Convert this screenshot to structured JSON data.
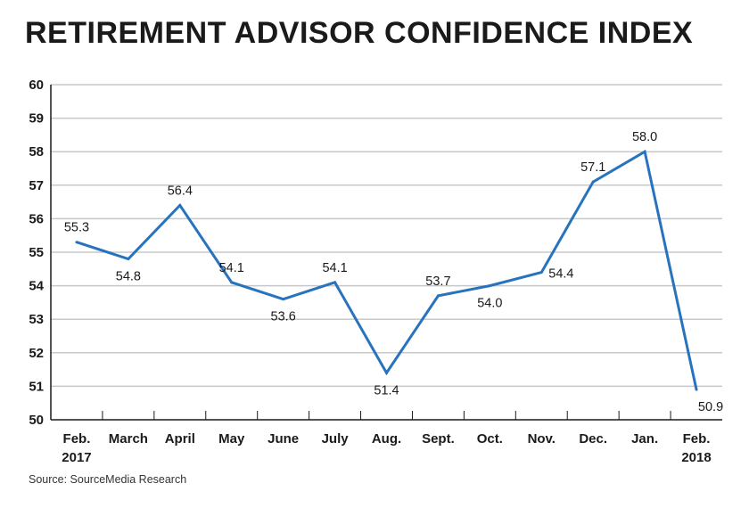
{
  "chart_data": {
    "type": "line",
    "title": "RETIREMENT ADVISOR CONFIDENCE INDEX",
    "categories": [
      {
        "line1": "Feb.",
        "line2": "2017"
      },
      {
        "line1": "March",
        "line2": ""
      },
      {
        "line1": "April",
        "line2": ""
      },
      {
        "line1": "May",
        "line2": ""
      },
      {
        "line1": "June",
        "line2": ""
      },
      {
        "line1": "July",
        "line2": ""
      },
      {
        "line1": "Aug.",
        "line2": ""
      },
      {
        "line1": "Sept.",
        "line2": ""
      },
      {
        "line1": "Oct.",
        "line2": ""
      },
      {
        "line1": "Nov.",
        "line2": ""
      },
      {
        "line1": "Dec.",
        "line2": ""
      },
      {
        "line1": "Jan.",
        "line2": ""
      },
      {
        "line1": "Feb.",
        "line2": "2018"
      }
    ],
    "series": [
      {
        "name": "Retirement Advisor Confidence Index",
        "values": [
          55.3,
          54.8,
          56.4,
          54.1,
          53.6,
          54.1,
          51.4,
          53.7,
          54.0,
          54.4,
          57.1,
          58.0,
          50.9
        ],
        "labels": [
          "55.3",
          "54.8",
          "56.4",
          "54.1",
          "53.6",
          "54.1",
          "51.4",
          "53.7",
          "54.0",
          "54.4",
          "57.1",
          "58.0",
          "50.9"
        ],
        "label_pos": [
          "above",
          "below",
          "above",
          "above",
          "below",
          "above",
          "below",
          "above",
          "below",
          "right",
          "above",
          "above",
          "below"
        ]
      }
    ],
    "ylim": [
      50,
      60
    ],
    "yticks": [
      50,
      51,
      52,
      53,
      54,
      55,
      56,
      57,
      58,
      59,
      60
    ],
    "xlabel": "",
    "ylabel": "",
    "grid": true,
    "color": "#2773be"
  },
  "source": "Source: SourceMedia Research"
}
